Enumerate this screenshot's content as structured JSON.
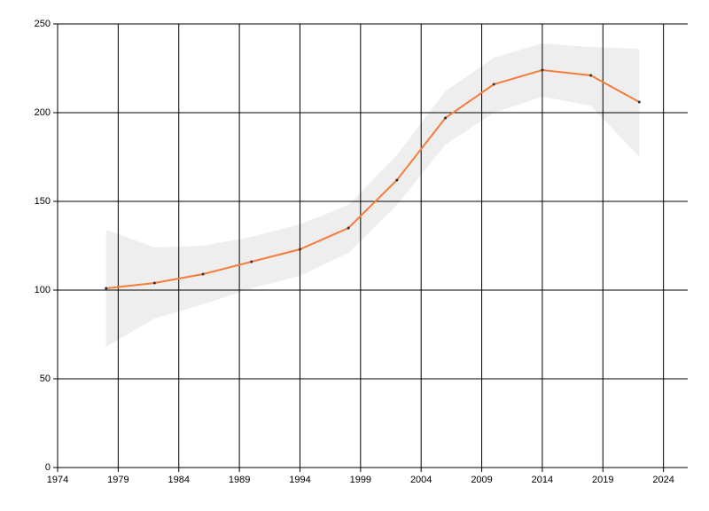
{
  "chart_data": {
    "type": "line",
    "x": [
      1978,
      1982,
      1986,
      1990,
      1994,
      1998,
      2002,
      2006,
      2010,
      2014,
      2018,
      2022
    ],
    "line": {
      "color": "#f47c3c",
      "values": [
        101,
        104,
        109,
        116,
        123,
        135,
        162,
        197,
        216,
        224,
        221,
        206
      ]
    },
    "band": {
      "color": "#eeeeee",
      "upper": [
        134,
        124,
        125,
        130,
        137,
        148,
        176,
        212,
        231,
        239,
        237,
        236
      ],
      "lower": [
        68,
        84,
        92,
        101,
        108,
        121,
        148,
        182,
        200,
        209,
        204,
        175
      ]
    },
    "xlim": [
      1974,
      2026
    ],
    "xticks": [
      1974,
      1979,
      1984,
      1989,
      1994,
      1999,
      2004,
      2009,
      2014,
      2019,
      2024
    ],
    "ylim": [
      0,
      250
    ],
    "yticks": [
      0,
      50,
      100,
      150,
      200,
      250
    ],
    "grid": true
  }
}
